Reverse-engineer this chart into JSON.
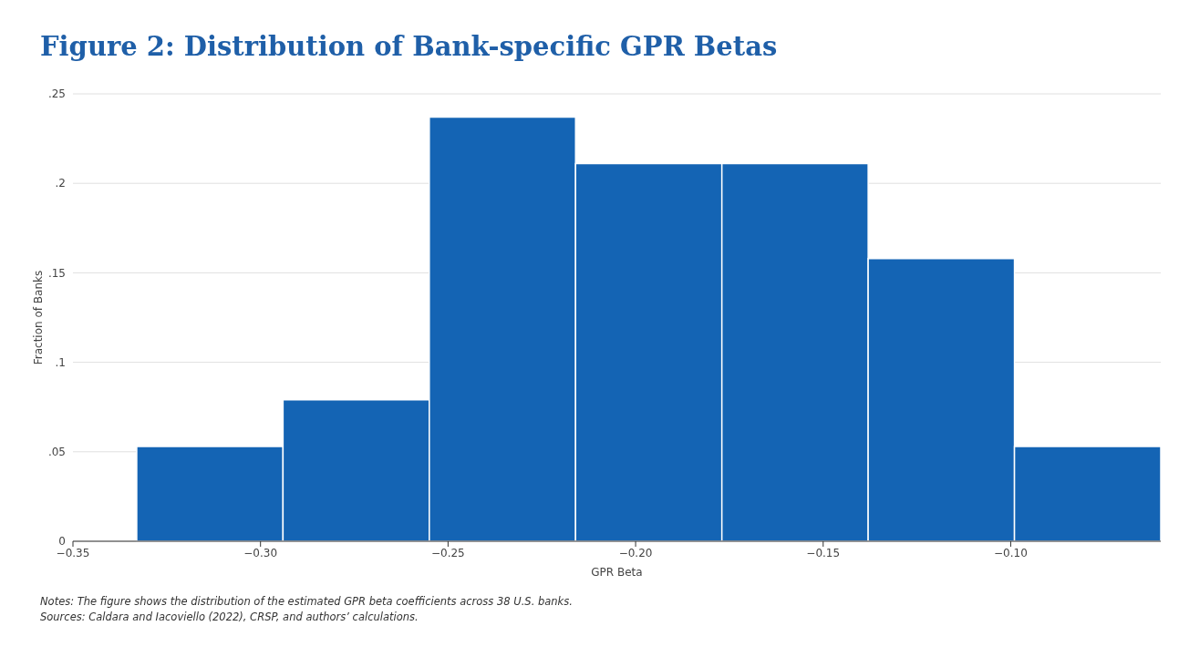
{
  "chart_data": {
    "type": "histogram",
    "title": "Figure 2: Distribution of Bank-specific GPR Betas",
    "xlabel": "GPR Beta",
    "ylabel": "Fraction of Banks",
    "bins": [
      -0.333,
      -0.294,
      -0.255,
      -0.216,
      -0.177,
      -0.138,
      -0.099,
      -0.06
    ],
    "values": [
      0.053,
      0.079,
      0.237,
      0.211,
      0.211,
      0.158,
      0.053
    ],
    "color": "#1464b4",
    "xlim": [
      -0.35,
      -0.06
    ],
    "xticks": [
      {
        "value": -0.35,
        "label": "−0.35"
      },
      {
        "value": -0.3,
        "label": "−0.30"
      },
      {
        "value": -0.25,
        "label": "−0.25"
      },
      {
        "value": -0.2,
        "label": "−0.20"
      },
      {
        "value": -0.15,
        "label": "−0.15"
      },
      {
        "value": -0.1,
        "label": "−0.10"
      }
    ],
    "ylim": [
      0,
      0.25
    ],
    "yticks": [
      0,
      {
        "value": 0.05,
        "label": ".05"
      },
      {
        "value": 0.1,
        "label": ".1"
      },
      {
        "value": 0.15,
        "label": ".15"
      },
      {
        "value": 0.2,
        "label": ".2"
      },
      {
        "value": 0.25,
        "label": ".25"
      }
    ],
    "grid": "y",
    "annotations": [
      "Notes: The figure shows the distribution of the estimated GPR beta coefficients across 38 U.S. banks.",
      "Sources: Caldara and Iacoviello (2022), CRSP, and authors’ calculations."
    ]
  }
}
